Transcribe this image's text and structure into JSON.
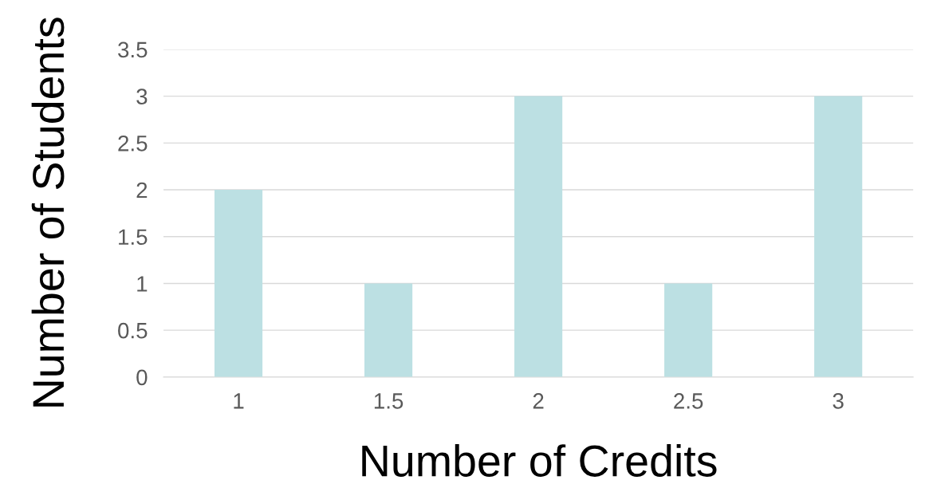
{
  "chart_data": {
    "type": "bar",
    "xlabel": "Number of Credits",
    "ylabel": "Number of Students",
    "categories": [
      "1",
      "1.5",
      "2",
      "2.5",
      "3"
    ],
    "values": [
      2,
      1,
      3,
      1,
      3
    ],
    "color": "#bce0e3",
    "ylim": [
      0,
      3.5
    ],
    "yticks": [
      0,
      0.5,
      1,
      1.5,
      2,
      2.5,
      3,
      3.5
    ],
    "grid": "y",
    "legend": false
  }
}
